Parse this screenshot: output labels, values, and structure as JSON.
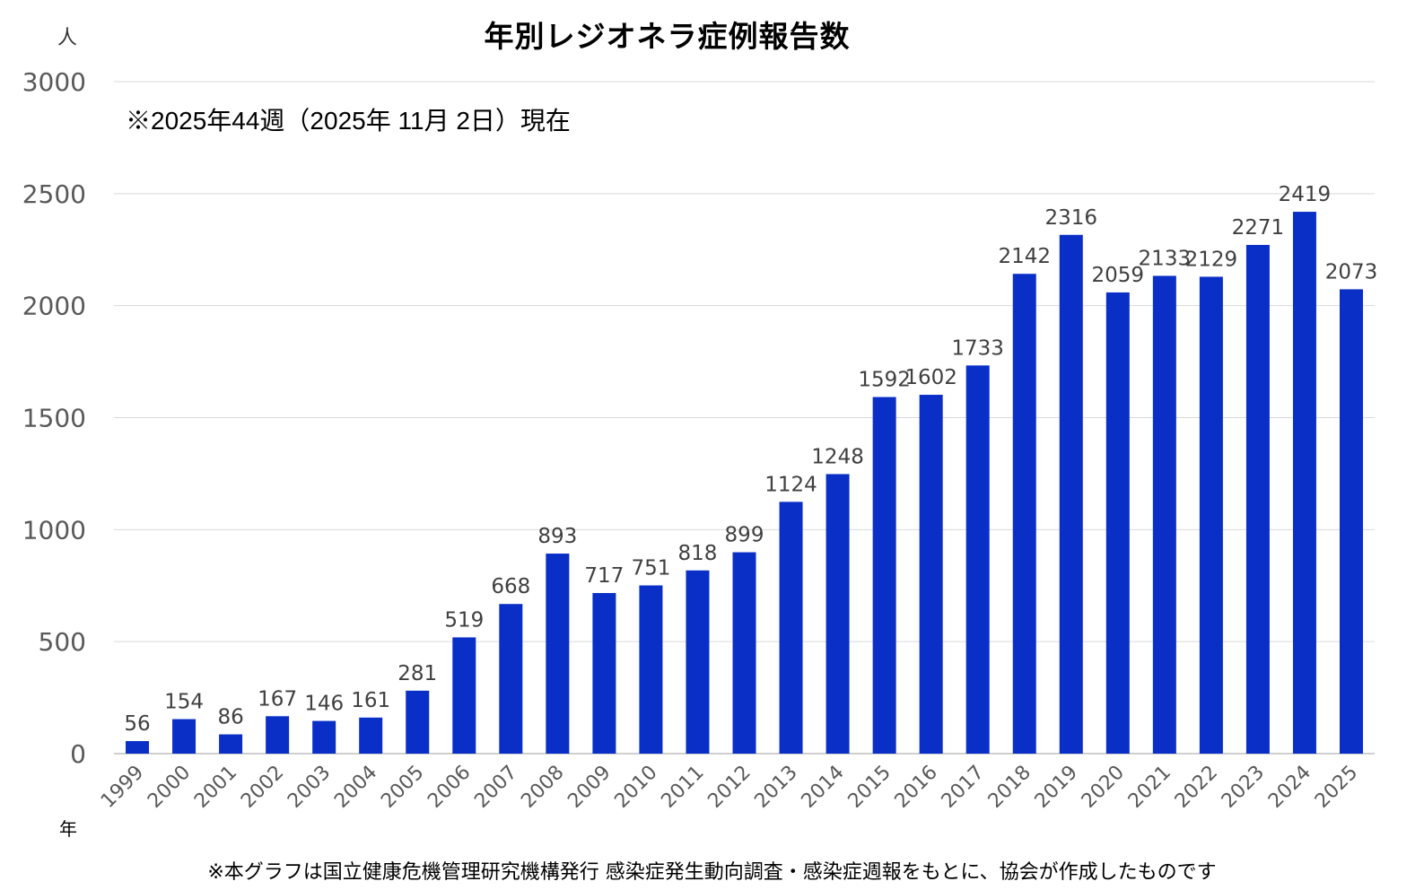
{
  "chart_data": {
    "type": "bar",
    "title": "年別レジオネラ症例報告数",
    "ylabel": "人",
    "xlabel": "年",
    "annotation": "※2025年44週（2025年 11月 2日）現在",
    "footnote": "※本グラフは国立健康危機管理研究機構発行 感染症発生動向調査・感染症週報をもとに、協会が作成したものです",
    "ylim": [
      0,
      3000
    ],
    "yticks": [
      0,
      500,
      1000,
      1500,
      2000,
      2500,
      3000
    ],
    "grid": true,
    "legend": "none",
    "bar_color": "#0a2fc7",
    "grid_color": "#d9d9d9",
    "categories": [
      "1999",
      "2000",
      "2001",
      "2002",
      "2003",
      "2004",
      "2005",
      "2006",
      "2007",
      "2008",
      "2009",
      "2010",
      "2011",
      "2012",
      "2013",
      "2014",
      "2015",
      "2016",
      "2017",
      "2018",
      "2019",
      "2020",
      "2021",
      "2022",
      "2023",
      "2024",
      "2025"
    ],
    "values": [
      56,
      154,
      86,
      167,
      146,
      161,
      281,
      519,
      668,
      893,
      717,
      751,
      818,
      899,
      1124,
      1248,
      1592,
      1602,
      1733,
      2142,
      2316,
      2059,
      2133,
      2129,
      2271,
      2419,
      2073
    ]
  }
}
